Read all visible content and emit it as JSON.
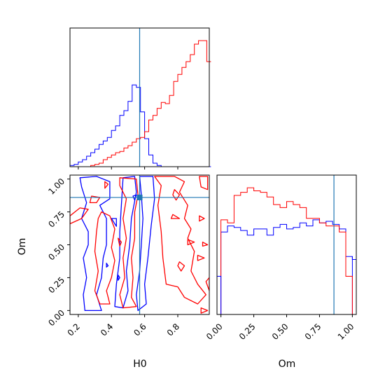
{
  "chart_data": [
    {
      "type": "histogram",
      "panel": "H0 marginal",
      "x_range": [
        0.15,
        0.99
      ],
      "truth_line": {
        "value": 0.57,
        "color": "#1f77b4"
      },
      "bin_edges": [
        0.15,
        0.175,
        0.2,
        0.225,
        0.25,
        0.275,
        0.3,
        0.325,
        0.35,
        0.375,
        0.4,
        0.425,
        0.45,
        0.475,
        0.5,
        0.525,
        0.55,
        0.575,
        0.6,
        0.625,
        0.65,
        0.675,
        0.7,
        0.725,
        0.75,
        0.775,
        0.8,
        0.825,
        0.85,
        0.875,
        0.9,
        0.925,
        0.95,
        0.975,
        1.0
      ],
      "series": [
        {
          "color": "#0000ff",
          "values": [
            1,
            2,
            4,
            6,
            9,
            12,
            15,
            19,
            22,
            25,
            31,
            35,
            44,
            48,
            56,
            70,
            68,
            47,
            24,
            10,
            3,
            1,
            0,
            0,
            0,
            0,
            0,
            0,
            0,
            0,
            0,
            0,
            0,
            0
          ]
        },
        {
          "color": "#ff0000",
          "values": [
            0,
            0,
            0,
            0,
            0,
            1,
            2,
            3,
            6,
            8,
            10,
            12,
            13,
            16,
            18,
            21,
            24,
            25,
            30,
            40,
            44,
            50,
            55,
            54,
            61,
            73,
            79,
            85,
            90,
            96,
            105,
            108,
            108,
            90
          ]
        }
      ]
    },
    {
      "type": "contour",
      "panel": "H0 vs Om joint",
      "xlabel": "H0",
      "ylabel": "Om",
      "xlim": [
        0.15,
        0.99
      ],
      "ylim": [
        -0.03,
        1.03
      ],
      "x_ticks": [
        "0.2",
        "0.4",
        "0.6",
        "0.8"
      ],
      "y_ticks": [
        "0.00",
        "0.25",
        "0.50",
        "0.75",
        "1.00"
      ],
      "truth_point": {
        "x": 0.57,
        "y": 0.86
      },
      "series": [
        {
          "color": "#0000ff",
          "contours": [
            [
              [
                0.21,
                1.01
              ],
              [
                0.31,
                1.02
              ],
              [
                0.39,
                0.98
              ],
              [
                0.39,
                0.85
              ],
              [
                0.33,
                0.8
              ],
              [
                0.37,
                0.7
              ],
              [
                0.37,
                0.5
              ],
              [
                0.35,
                0.4
              ],
              [
                0.34,
                0.25
              ],
              [
                0.31,
                0.12
              ],
              [
                0.34,
                0.0
              ],
              [
                0.24,
                0.0
              ],
              [
                0.23,
                0.12
              ],
              [
                0.25,
                0.25
              ],
              [
                0.23,
                0.4
              ],
              [
                0.26,
                0.5
              ],
              [
                0.26,
                0.6
              ],
              [
                0.22,
                0.7
              ],
              [
                0.25,
                0.82
              ],
              [
                0.22,
                0.94
              ]
            ],
            [
              [
                0.47,
                1.01
              ],
              [
                0.54,
                1.02
              ],
              [
                0.55,
                0.9
              ],
              [
                0.52,
                0.7
              ],
              [
                0.51,
                0.5
              ],
              [
                0.49,
                0.3
              ],
              [
                0.5,
                0.15
              ],
              [
                0.47,
                0.02
              ],
              [
                0.42,
                0.03
              ],
              [
                0.43,
                0.2
              ],
              [
                0.45,
                0.4
              ],
              [
                0.45,
                0.6
              ],
              [
                0.46,
                0.8
              ]
            ],
            [
              [
                0.57,
                1.02
              ],
              [
                0.65,
                1.02
              ],
              [
                0.66,
                0.85
              ],
              [
                0.64,
                0.65
              ],
              [
                0.62,
                0.4
              ],
              [
                0.6,
                0.2
              ],
              [
                0.61,
                0.05
              ],
              [
                0.56,
                0.0
              ],
              [
                0.55,
                0.12
              ],
              [
                0.57,
                0.3
              ],
              [
                0.58,
                0.5
              ],
              [
                0.59,
                0.7
              ],
              [
                0.58,
                0.88
              ]
            ],
            [
              [
                0.4,
                0.7
              ],
              [
                0.43,
                0.64
              ],
              [
                0.43,
                0.7
              ]
            ],
            [
              [
                0.53,
                0.87
              ],
              [
                0.54,
                0.84
              ],
              [
                0.55,
                0.88
              ]
            ],
            [
              [
                0.37,
                0.36
              ],
              [
                0.38,
                0.34
              ],
              [
                0.37,
                0.33
              ]
            ],
            [
              [
                0.44,
                0.27
              ],
              [
                0.45,
                0.25
              ],
              [
                0.44,
                0.23
              ]
            ]
          ]
        },
        {
          "color": "#ff0000",
          "contours": [
            [
              [
                0.15,
                0.72
              ],
              [
                0.21,
                0.78
              ],
              [
                0.26,
                0.77
              ],
              [
                0.22,
                0.7
              ],
              [
                0.15,
                0.66
              ]
            ],
            [
              [
                0.28,
                0.87
              ],
              [
                0.33,
                0.86
              ],
              [
                0.31,
                0.82
              ],
              [
                0.27,
                0.82
              ]
            ],
            [
              [
                0.36,
                0.98
              ],
              [
                0.38,
                0.96
              ],
              [
                0.36,
                0.93
              ]
            ],
            [
              [
                0.34,
                0.75
              ],
              [
                0.39,
                0.72
              ],
              [
                0.42,
                0.62
              ],
              [
                0.4,
                0.48
              ],
              [
                0.42,
                0.38
              ],
              [
                0.4,
                0.25
              ],
              [
                0.37,
                0.15
              ],
              [
                0.39,
                0.05
              ],
              [
                0.33,
                0.05
              ],
              [
                0.3,
                0.15
              ],
              [
                0.32,
                0.3
              ],
              [
                0.3,
                0.45
              ],
              [
                0.31,
                0.6
              ],
              [
                0.32,
                0.7
              ]
            ],
            [
              [
                0.45,
                1.01
              ],
              [
                0.55,
                1.0
              ],
              [
                0.56,
                0.88
              ],
              [
                0.54,
                0.75
              ],
              [
                0.54,
                0.55
              ],
              [
                0.52,
                0.4
              ],
              [
                0.53,
                0.25
              ],
              [
                0.52,
                0.1
              ],
              [
                0.55,
                0.03
              ],
              [
                0.47,
                0.02
              ],
              [
                0.45,
                0.12
              ],
              [
                0.48,
                0.25
              ],
              [
                0.47,
                0.4
              ],
              [
                0.49,
                0.55
              ],
              [
                0.47,
                0.7
              ],
              [
                0.49,
                0.85
              ],
              [
                0.45,
                0.95
              ]
            ],
            [
              [
                0.44,
                0.55
              ],
              [
                0.46,
                0.52
              ],
              [
                0.45,
                0.49
              ]
            ],
            [
              [
                0.66,
                1.02
              ],
              [
                0.7,
                0.95
              ],
              [
                0.68,
                0.8
              ],
              [
                0.7,
                0.6
              ],
              [
                0.71,
                0.4
              ],
              [
                0.73,
                0.2
              ],
              [
                0.8,
                0.18
              ],
              [
                0.84,
                0.1
              ],
              [
                0.92,
                0.05
              ],
              [
                0.97,
                0.12
              ],
              [
                0.92,
                0.2
              ],
              [
                0.88,
                0.3
              ],
              [
                0.9,
                0.45
              ],
              [
                0.86,
                0.55
              ],
              [
                0.88,
                0.62
              ],
              [
                0.84,
                0.7
              ],
              [
                0.86,
                0.8
              ],
              [
                0.81,
                0.9
              ],
              [
                0.84,
                0.98
              ],
              [
                0.78,
                1.02
              ]
            ],
            [
              [
                0.78,
                0.92
              ],
              [
                0.81,
                0.88
              ],
              [
                0.79,
                0.84
              ],
              [
                0.77,
                0.88
              ]
            ],
            [
              [
                0.77,
                0.73
              ],
              [
                0.81,
                0.7
              ],
              [
                0.76,
                0.7
              ]
            ],
            [
              [
                0.86,
                0.54
              ],
              [
                0.9,
                0.52
              ],
              [
                0.86,
                0.5
              ]
            ],
            [
              [
                0.81,
                0.37
              ],
              [
                0.84,
                0.34
              ],
              [
                0.82,
                0.3
              ],
              [
                0.8,
                0.34
              ]
            ],
            [
              [
                0.93,
                1.02
              ],
              [
                0.98,
                1.02
              ],
              [
                0.98,
                0.92
              ],
              [
                0.94,
                0.94
              ]
            ],
            [
              [
                0.93,
                0.72
              ],
              [
                0.96,
                0.7
              ],
              [
                0.93,
                0.68
              ]
            ],
            [
              [
                0.95,
                0.52
              ],
              [
                0.98,
                0.5
              ],
              [
                0.95,
                0.49
              ]
            ],
            [
              [
                0.92,
                0.42
              ],
              [
                0.96,
                0.4
              ],
              [
                0.92,
                0.38
              ]
            ],
            [
              [
                0.97,
                0.22
              ],
              [
                0.99,
                0.15
              ],
              [
                0.99,
                0.25
              ]
            ],
            [
              [
                0.94,
                0.02
              ],
              [
                0.98,
                0.0
              ],
              [
                0.94,
                -0.02
              ]
            ]
          ]
        }
      ]
    },
    {
      "type": "histogram",
      "panel": "Om marginal",
      "xlabel": "Om",
      "x_range": [
        -0.03,
        1.03
      ],
      "x_ticks": [
        "0.00",
        "0.25",
        "0.50",
        "0.75",
        "1.00"
      ],
      "truth_line": {
        "value": 0.86,
        "color": "#1f77b4"
      },
      "bin_edges": [
        0.0,
        0.05,
        0.1,
        0.15,
        0.2,
        0.25,
        0.3,
        0.35,
        0.4,
        0.45,
        0.5,
        0.55,
        0.6,
        0.65,
        0.7,
        0.75,
        0.8,
        0.85,
        0.9,
        0.95,
        1.0
      ],
      "series": [
        {
          "color": "#0000ff",
          "values": [
            54,
            58,
            57,
            55,
            52,
            56,
            56,
            52,
            57,
            59,
            56,
            57,
            60,
            58,
            62,
            60,
            61,
            59,
            56,
            38
          ]
        },
        {
          "color": "#ff0000",
          "values": [
            62,
            60,
            78,
            80,
            83,
            81,
            80,
            77,
            72,
            70,
            74,
            72,
            70,
            63,
            63,
            60,
            58,
            58,
            54,
            25
          ]
        }
      ]
    }
  ]
}
